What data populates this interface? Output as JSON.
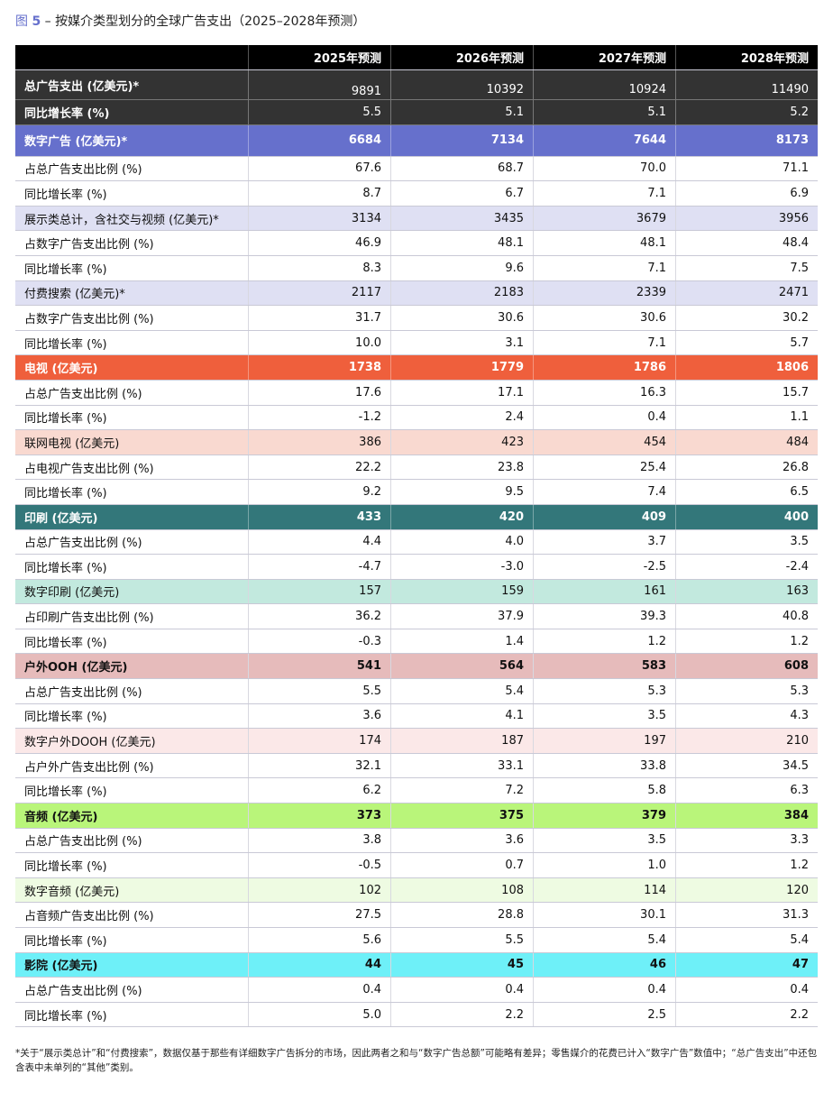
{
  "title": {
    "fig_label": "图",
    "fig_num": "5",
    "text": " – 按媒介类型划分的全球广告支出（2025–2028年预测）"
  },
  "columns": [
    "2025年预测",
    "2026年预测",
    "2027年预测",
    "2028年预测"
  ],
  "colors": {
    "header": "#000000",
    "total": "#333333",
    "digital": "#6670cc",
    "digital_sub": "#dfe0f3",
    "tv": "#ef5f3c",
    "tv_sub": "#f9d9d0",
    "print": "#33777a",
    "print_sub": "#c2e9de",
    "ooh": "#e6bbbb",
    "ooh_sub": "#fbe8e8",
    "audio": "#b9f57a",
    "audio_sub": "#eefbe2",
    "cinema": "#6ef0f8"
  },
  "rows": [
    {
      "label": "总广告支出 (亿美元)*",
      "values": [
        "9891",
        "10392",
        "10924",
        "11490"
      ],
      "style": "dark tall"
    },
    {
      "label": "同比增长率 (%)",
      "values": [
        "5.5",
        "5.1",
        "5.1",
        "5.2"
      ],
      "style": "dark"
    },
    {
      "label": "数字广告 (亿美元)*",
      "values": [
        "6684",
        "7134",
        "7644",
        "8173"
      ],
      "style": "main tallm",
      "bg": "digital",
      "fg": "#ffffff"
    },
    {
      "label": "占总广告支出比例 (%)",
      "values": [
        "67.6",
        "68.7",
        "70.0",
        "71.1"
      ]
    },
    {
      "label": "同比增长率 (%)",
      "values": [
        "8.7",
        "6.7",
        "7.1",
        "6.9"
      ]
    },
    {
      "label": "展示类总计，含社交与视频 (亿美元)*",
      "values": [
        "3134",
        "3435",
        "3679",
        "3956"
      ],
      "bg": "digital_sub"
    },
    {
      "label": "占数字广告支出比例 (%)",
      "values": [
        "46.9",
        "48.1",
        "48.1",
        "48.4"
      ]
    },
    {
      "label": "同比增长率 (%)",
      "values": [
        "8.3",
        "9.6",
        "7.1",
        "7.5"
      ]
    },
    {
      "label": "付费搜索 (亿美元)*",
      "values": [
        "2117",
        "2183",
        "2339",
        "2471"
      ],
      "bg": "digital_sub"
    },
    {
      "label": "占数字广告支出比例 (%)",
      "values": [
        "31.7",
        "30.6",
        "30.6",
        "30.2"
      ]
    },
    {
      "label": "同比增长率 (%)",
      "values": [
        "10.0",
        "3.1",
        "7.1",
        "5.7"
      ]
    },
    {
      "label": "电视 (亿美元)",
      "values": [
        "1738",
        "1779",
        "1786",
        "1806"
      ],
      "style": "main",
      "bg": "tv",
      "fg": "#ffffff"
    },
    {
      "label": "占总广告支出比例 (%)",
      "values": [
        "17.6",
        "17.1",
        "16.3",
        "15.7"
      ]
    },
    {
      "label": "同比增长率 (%)",
      "values": [
        "-1.2",
        "2.4",
        "0.4",
        "1.1"
      ]
    },
    {
      "label": "联网电视 (亿美元)",
      "values": [
        "386",
        "423",
        "454",
        "484"
      ],
      "bg": "tv_sub"
    },
    {
      "label": "占电视广告支出比例 (%)",
      "values": [
        "22.2",
        "23.8",
        "25.4",
        "26.8"
      ]
    },
    {
      "label": "同比增长率 (%)",
      "values": [
        "9.2",
        "9.5",
        "7.4",
        "6.5"
      ]
    },
    {
      "label": "印刷 (亿美元)",
      "values": [
        "433",
        "420",
        "409",
        "400"
      ],
      "style": "main",
      "bg": "print",
      "fg": "#ffffff"
    },
    {
      "label": "占总广告支出比例 (%)",
      "values": [
        "4.4",
        "4.0",
        "3.7",
        "3.5"
      ]
    },
    {
      "label": "同比增长率 (%)",
      "values": [
        "-4.7",
        "-3.0",
        "-2.5",
        "-2.4"
      ]
    },
    {
      "label": "数字印刷 (亿美元)",
      "values": [
        "157",
        "159",
        "161",
        "163"
      ],
      "bg": "print_sub"
    },
    {
      "label": "占印刷广告支出比例 (%)",
      "values": [
        "36.2",
        "37.9",
        "39.3",
        "40.8"
      ]
    },
    {
      "label": "同比增长率 (%)",
      "values": [
        "-0.3",
        "1.4",
        "1.2",
        "1.2"
      ]
    },
    {
      "label": "户外OOH (亿美元)",
      "values": [
        "541",
        "564",
        "583",
        "608"
      ],
      "style": "main",
      "bg": "ooh"
    },
    {
      "label": "占总广告支出比例 (%)",
      "values": [
        "5.5",
        "5.4",
        "5.3",
        "5.3"
      ]
    },
    {
      "label": "同比增长率 (%)",
      "values": [
        "3.6",
        "4.1",
        "3.5",
        "4.3"
      ]
    },
    {
      "label": "数字户外DOOH (亿美元)",
      "values": [
        "174",
        "187",
        "197",
        "210"
      ],
      "bg": "ooh_sub"
    },
    {
      "label": "占户外广告支出比例 (%)",
      "values": [
        "32.1",
        "33.1",
        "33.8",
        "34.5"
      ]
    },
    {
      "label": "同比增长率 (%)",
      "values": [
        "6.2",
        "7.2",
        "5.8",
        "6.3"
      ]
    },
    {
      "label": "音频 (亿美元)",
      "values": [
        "373",
        "375",
        "379",
        "384"
      ],
      "style": "main",
      "bg": "audio"
    },
    {
      "label": "占总广告支出比例 (%)",
      "values": [
        "3.8",
        "3.6",
        "3.5",
        "3.3"
      ]
    },
    {
      "label": "同比增长率 (%)",
      "values": [
        "-0.5",
        "0.7",
        "1.0",
        "1.2"
      ]
    },
    {
      "label": "数字音频 (亿美元)",
      "values": [
        "102",
        "108",
        "114",
        "120"
      ],
      "bg": "audio_sub"
    },
    {
      "label": "占音频广告支出比例 (%)",
      "values": [
        "27.5",
        "28.8",
        "30.1",
        "31.3"
      ]
    },
    {
      "label": "同比增长率 (%)",
      "values": [
        "5.6",
        "5.5",
        "5.4",
        "5.4"
      ]
    },
    {
      "label": "影院 (亿美元)",
      "values": [
        "44",
        "45",
        "46",
        "47"
      ],
      "style": "main",
      "bg": "cinema"
    },
    {
      "label": "占总广告支出比例 (%)",
      "values": [
        "0.4",
        "0.4",
        "0.4",
        "0.4"
      ]
    },
    {
      "label": "同比增长率 (%)",
      "values": [
        "5.0",
        "2.2",
        "2.5",
        "2.2"
      ]
    }
  ],
  "footnote": "*关于“展示类总计”和“付费搜索”，数据仅基于那些有详细数字广告拆分的市场，因此两者之和与“数字广告总额”可能略有差异；零售媒介的花费已计入“数字广告”数值中；“总广告支出”中还包含表中未单列的“其他”类别。"
}
